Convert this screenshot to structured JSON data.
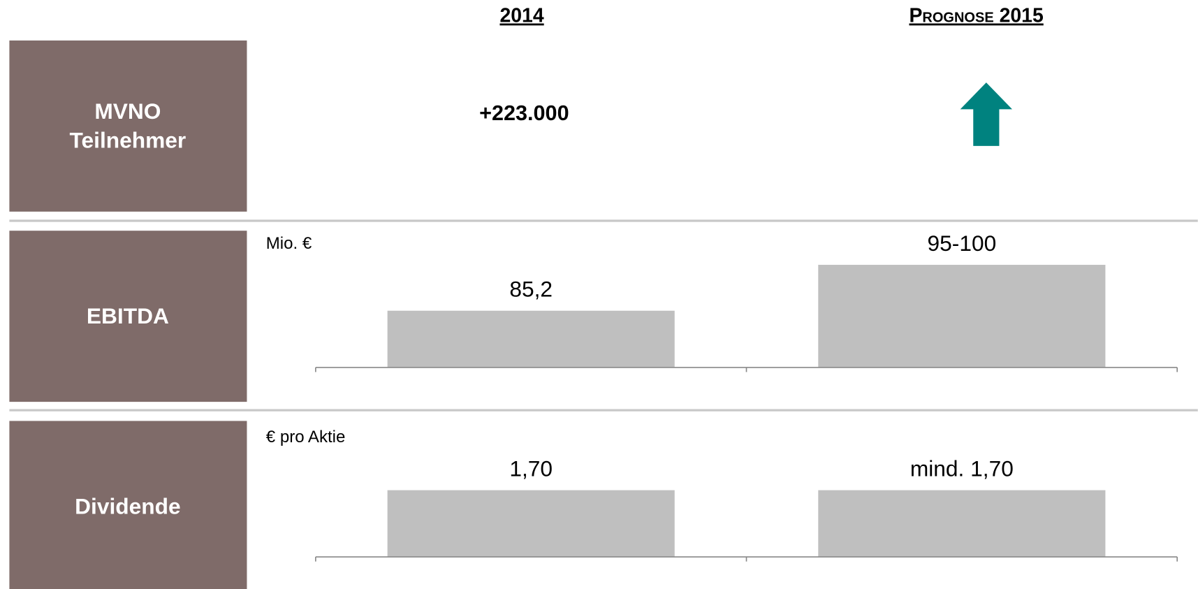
{
  "columns": [
    "2014",
    "Prognose 2015"
  ],
  "rows": [
    {
      "label": [
        "MVNO",
        "Teilnehmer"
      ],
      "value": "+223.000"
    },
    {
      "label": [
        "EBITDA"
      ]
    },
    {
      "label": [
        "Dividende"
      ]
    }
  ],
  "chart_data": [
    {
      "type": "bar",
      "unit": "Mio. €",
      "values": [
        85.2,
        97.5
      ],
      "value_labels": [
        "85,2",
        "95-100"
      ],
      "color": "#bfbfbf",
      "ylim": [
        70,
        105
      ]
    },
    {
      "type": "bar",
      "unit": "€ pro Aktie",
      "values": [
        1.7,
        1.7
      ],
      "value_labels": [
        "1,70",
        "mind. 1,70"
      ],
      "color": "#bfbfbf",
      "ylim": [
        0,
        2.9
      ]
    }
  ]
}
